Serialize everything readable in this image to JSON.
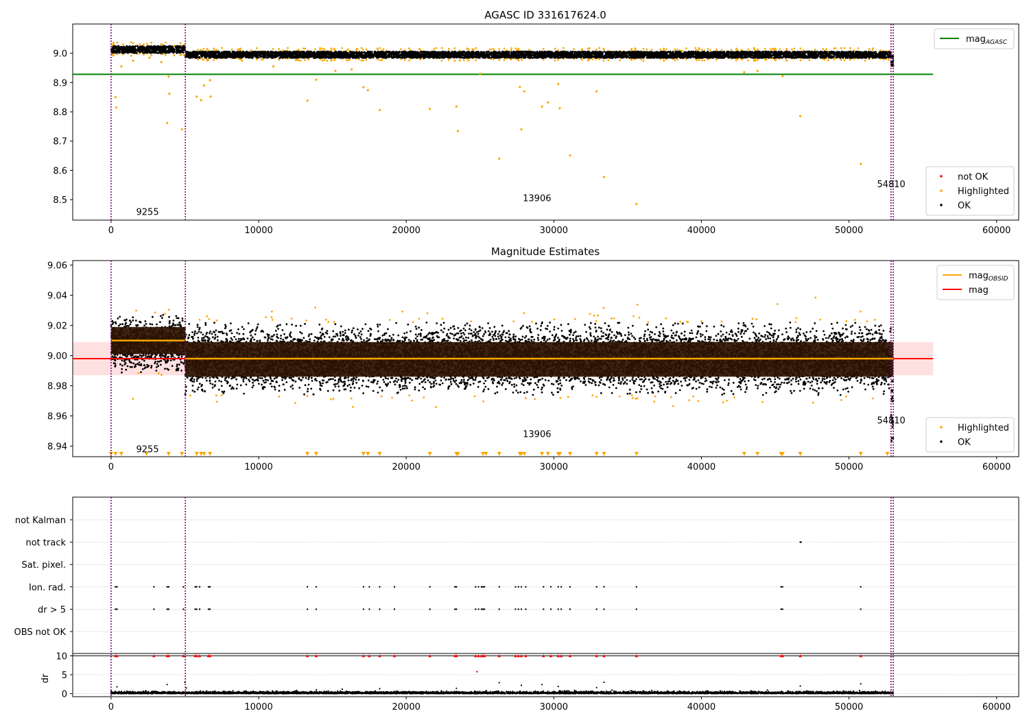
{
  "chart_data": [
    {
      "type": "scatter",
      "title": "AGASC ID 331617624.0",
      "xlim": [
        -2600,
        61500
      ],
      "ylim": [
        8.43,
        9.1
      ],
      "xticks": [
        0,
        10000,
        20000,
        30000,
        40000,
        50000,
        60000
      ],
      "yticks": [
        8.5,
        8.6,
        8.7,
        8.8,
        8.9,
        9.0
      ],
      "xtick_labels": [
        "0",
        "10000",
        "20000",
        "30000",
        "40000",
        "50000",
        "60000"
      ],
      "ytick_labels": [
        "8.5",
        "8.6",
        "8.7",
        "8.8",
        "8.9",
        "9.0"
      ],
      "grid": false,
      "obs_boundaries": [
        0,
        5030,
        52850,
        53000
      ],
      "annotations": [
        {
          "text": "9255",
          "x": 1700,
          "y": 8.448
        },
        {
          "text": "13906",
          "x": 27900,
          "y": 8.495
        },
        {
          "text": "54810",
          "x": 51900,
          "y": 8.542
        }
      ],
      "hlines": [
        {
          "name": "mag",
          "subscript": "AGASC",
          "y": 8.928,
          "x": [
            -2600,
            55700
          ],
          "color": "#008000"
        }
      ],
      "ok_band": [
        {
          "x": [
            0,
            5030
          ],
          "center": 9.013,
          "half_width": 0.012
        },
        {
          "x": [
            5030,
            52850
          ],
          "center": 8.995,
          "half_width": 0.011
        },
        {
          "x": [
            52850,
            53000
          ],
          "center": 8.975,
          "half_width": 0.02
        }
      ],
      "highlighted_points": [
        {
          "x": 300,
          "y": 8.85
        },
        {
          "x": 350,
          "y": 8.815
        },
        {
          "x": 700,
          "y": 8.955
        },
        {
          "x": 1500,
          "y": 8.975
        },
        {
          "x": 2600,
          "y": 8.985
        },
        {
          "x": 3400,
          "y": 8.97
        },
        {
          "x": 3800,
          "y": 8.762
        },
        {
          "x": 3900,
          "y": 8.92
        },
        {
          "x": 3950,
          "y": 8.862
        },
        {
          "x": 4800,
          "y": 8.74
        },
        {
          "x": 5800,
          "y": 8.852
        },
        {
          "x": 6100,
          "y": 8.84
        },
        {
          "x": 6300,
          "y": 8.89
        },
        {
          "x": 6700,
          "y": 8.908
        },
        {
          "x": 6750,
          "y": 8.852
        },
        {
          "x": 13300,
          "y": 8.838
        },
        {
          "x": 13900,
          "y": 8.91
        },
        {
          "x": 17100,
          "y": 8.884
        },
        {
          "x": 17400,
          "y": 8.874
        },
        {
          "x": 18200,
          "y": 8.806
        },
        {
          "x": 21600,
          "y": 8.81
        },
        {
          "x": 23400,
          "y": 8.818
        },
        {
          "x": 23500,
          "y": 8.734
        },
        {
          "x": 26300,
          "y": 8.64
        },
        {
          "x": 27700,
          "y": 8.885
        },
        {
          "x": 27800,
          "y": 8.74
        },
        {
          "x": 28000,
          "y": 8.87
        },
        {
          "x": 29200,
          "y": 8.818
        },
        {
          "x": 29600,
          "y": 8.832
        },
        {
          "x": 30300,
          "y": 8.895
        },
        {
          "x": 30400,
          "y": 8.812
        },
        {
          "x": 31100,
          "y": 8.651
        },
        {
          "x": 32900,
          "y": 8.87
        },
        {
          "x": 33400,
          "y": 8.577
        },
        {
          "x": 35600,
          "y": 8.485
        },
        {
          "x": 46700,
          "y": 8.785
        },
        {
          "x": 50800,
          "y": 8.622
        },
        {
          "x": 45500,
          "y": 8.922
        },
        {
          "x": 42900,
          "y": 8.935
        },
        {
          "x": 43800,
          "y": 8.94
        },
        {
          "x": 15200,
          "y": 8.94
        },
        {
          "x": 16300,
          "y": 8.945
        },
        {
          "x": 11000,
          "y": 8.955
        },
        {
          "x": 25000,
          "y": 8.93
        }
      ],
      "legends": [
        {
          "position": "upper-right",
          "entries": [
            {
              "label": "mag",
              "subscript": "AGASC",
              "marker": "line",
              "color": "#008000"
            }
          ]
        },
        {
          "position": "lower-right",
          "entries": [
            {
              "label": "not OK",
              "marker": "dot",
              "color": "#ff0000"
            },
            {
              "label": "Highlighted",
              "marker": "dot",
              "color": "#ffa500"
            },
            {
              "label": "OK",
              "marker": "dot",
              "color": "#000000"
            }
          ]
        }
      ]
    },
    {
      "type": "scatter",
      "title": "Magnitude Estimates",
      "xlim": [
        -2600,
        61500
      ],
      "ylim": [
        8.933,
        9.063
      ],
      "xticks": [
        0,
        10000,
        20000,
        30000,
        40000,
        50000,
        60000
      ],
      "yticks": [
        8.94,
        8.96,
        8.98,
        9.0,
        9.02,
        9.04,
        9.06
      ],
      "xtick_labels": [
        "0",
        "10000",
        "20000",
        "30000",
        "40000",
        "50000",
        "60000"
      ],
      "ytick_labels": [
        "8.94",
        "8.96",
        "8.98",
        "9.00",
        "9.02",
        "9.04",
        "9.06"
      ],
      "grid": false,
      "obs_boundaries": [
        0,
        5030,
        52850,
        53000
      ],
      "annotations": [
        {
          "text": "9255",
          "x": 1700,
          "y": 8.936
        },
        {
          "text": "13906",
          "x": 27900,
          "y": 8.946
        },
        {
          "text": "54810",
          "x": 51900,
          "y": 8.955
        }
      ],
      "mag_line": {
        "name": "mag",
        "y": 8.998,
        "x": [
          -2600,
          55700
        ],
        "band": [
          8.987,
          9.009
        ],
        "color": "#ff0000"
      },
      "obsid_segments": [
        {
          "x": [
            0,
            5030
          ],
          "y": 9.01,
          "band": [
            9.001,
            9.019
          ]
        },
        {
          "x": [
            5030,
            52850
          ],
          "y": 8.998,
          "band": [
            8.986,
            9.009
          ]
        },
        {
          "x": [
            52850,
            53000
          ],
          "y": 8.998,
          "band": [
            8.986,
            9.009
          ]
        }
      ],
      "ok_scatter": [
        {
          "x": [
            0,
            5030
          ],
          "center": 9.008,
          "spread": 0.017
        },
        {
          "x": [
            5030,
            52850
          ],
          "center": 8.998,
          "spread": 0.021
        },
        {
          "x": [
            52850,
            53000
          ],
          "center": 8.97,
          "spread": 0.03
        }
      ],
      "low_clip_markers_x": [
        0,
        300,
        700,
        2400,
        3900,
        4800,
        5800,
        6100,
        6300,
        6700,
        13300,
        13900,
        17100,
        17400,
        18200,
        21600,
        23400,
        23500,
        25200,
        25400,
        26300,
        27700,
        27800,
        28000,
        29200,
        29600,
        30300,
        30400,
        31100,
        32900,
        33400,
        35600,
        42900,
        43800,
        45400,
        45500,
        46700,
        50800,
        52600
      ],
      "legends": [
        {
          "position": "upper-right",
          "entries": [
            {
              "label": "mag",
              "subscript": "OBSID",
              "marker": "line",
              "color": "#ffa500"
            },
            {
              "label": "mag",
              "marker": "line",
              "color": "#ff0000"
            }
          ]
        },
        {
          "position": "lower-right",
          "entries": [
            {
              "label": "Highlighted",
              "marker": "dot",
              "color": "#ffa500"
            },
            {
              "label": "OK",
              "marker": "dot",
              "color": "#000000"
            }
          ]
        }
      ]
    },
    {
      "type": "scatter",
      "title": "",
      "xlim": [
        -2600,
        61500
      ],
      "categories": [
        "OBS not OK",
        "dr > 5",
        "Ion. rad.",
        "Sat. pixel.",
        "not track",
        "not Kalman"
      ],
      "grid": true,
      "obs_boundaries": [
        0,
        5030,
        52850,
        53000
      ],
      "flag_points": {
        "dr > 5": [
          300,
          400,
          2900,
          3800,
          3900,
          4900,
          5700,
          5800,
          6000,
          6600,
          6700,
          13300,
          13900,
          17100,
          17500,
          18200,
          19200,
          21600,
          23300,
          23400,
          24700,
          24900,
          25100,
          25200,
          25300,
          26300,
          27400,
          27600,
          27800,
          28100,
          29300,
          29800,
          30300,
          30500,
          31100,
          32900,
          33400,
          35600,
          45400,
          45500,
          50800
        ],
        "Ion. rad.": [
          300,
          400,
          2900,
          3800,
          3900,
          4900,
          5700,
          5800,
          6000,
          6600,
          6700,
          13300,
          13900,
          17100,
          17500,
          18200,
          19200,
          21600,
          23300,
          23400,
          24700,
          24900,
          25100,
          25200,
          25300,
          26300,
          27400,
          27600,
          27800,
          28100,
          29300,
          29800,
          30300,
          30500,
          31100,
          32900,
          33400,
          35600,
          45400,
          45500,
          50800
        ],
        "not track": [
          46700,
          46750
        ]
      }
    },
    {
      "type": "scatter",
      "title": "",
      "xlim": [
        -2600,
        61500
      ],
      "ylim": [
        -0.8,
        10.6
      ],
      "ylabel": "dr",
      "yticks": [
        0,
        5,
        10
      ],
      "ytick_labels": [
        "0",
        "5",
        "10"
      ],
      "xticks": [
        0,
        10000,
        20000,
        30000,
        40000,
        50000,
        60000
      ],
      "xtick_labels": [
        "0",
        "10000",
        "20000",
        "30000",
        "40000",
        "50000",
        "60000"
      ],
      "grid": true,
      "hlines": [
        {
          "y": 10,
          "color": "#000000"
        }
      ],
      "obs_boundaries": [
        0,
        5030,
        52850,
        53000
      ],
      "clipped_markers_x": [
        300,
        400,
        2900,
        3800,
        3900,
        4900,
        5700,
        5800,
        6000,
        6600,
        6700,
        13300,
        13900,
        17100,
        17500,
        18200,
        19200,
        21600,
        23300,
        23400,
        24700,
        24900,
        25100,
        25200,
        25300,
        26300,
        27400,
        27600,
        27800,
        28100,
        29300,
        29800,
        30300,
        30500,
        31100,
        32900,
        33400,
        35600,
        45400,
        45500,
        46700,
        50800
      ],
      "scatter_outliers": [
        {
          "x": 400,
          "y": 1.8
        },
        {
          "x": 3800,
          "y": 2.4
        },
        {
          "x": 5000,
          "y": 3.0
        },
        {
          "x": 5100,
          "y": 1.5
        },
        {
          "x": 13900,
          "y": 1.0
        },
        {
          "x": 18200,
          "y": 1.3
        },
        {
          "x": 24800,
          "y": 5.8
        },
        {
          "x": 26300,
          "y": 2.9
        },
        {
          "x": 27800,
          "y": 2.2
        },
        {
          "x": 29200,
          "y": 2.4
        },
        {
          "x": 30300,
          "y": 1.9
        },
        {
          "x": 33400,
          "y": 3.0
        },
        {
          "x": 46700,
          "y": 2.0
        },
        {
          "x": 50800,
          "y": 2.6
        },
        {
          "x": 32900,
          "y": 1.6
        },
        {
          "x": 23400,
          "y": 1.4
        }
      ]
    }
  ]
}
